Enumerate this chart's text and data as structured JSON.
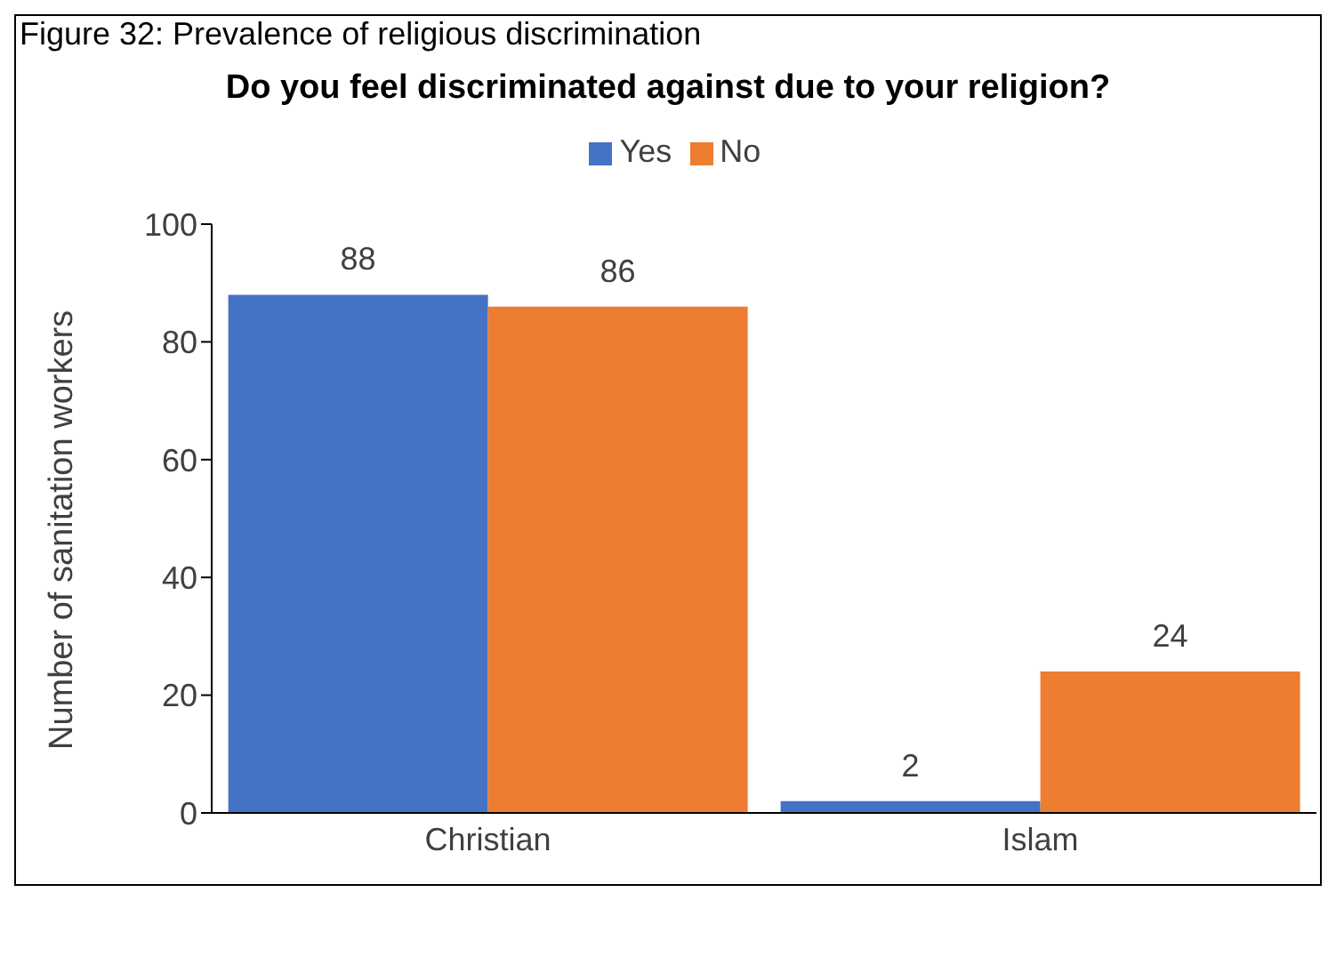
{
  "chart_data": {
    "type": "bar",
    "title": "Do you feel discriminated against due to your religion?",
    "annotations": [
      "Figure 32: Prevalence of religious discrimination"
    ],
    "ylabel": "Number of sanitation workers",
    "categories": [
      "Christian",
      "Islam"
    ],
    "series": [
      {
        "name": "Yes",
        "color": "#4472c4",
        "values": [
          88,
          2
        ]
      },
      {
        "name": "No",
        "color": "#ed7d31",
        "values": [
          86,
          24
        ]
      }
    ],
    "ylim": [
      0,
      100
    ],
    "yticks": [
      0,
      20,
      40,
      60,
      80,
      100
    ],
    "grid": false,
    "legend": "top",
    "data_labels": true
  }
}
